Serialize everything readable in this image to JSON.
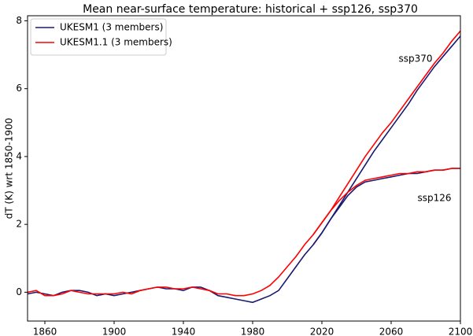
{
  "chart_data": {
    "type": "line",
    "title": "Mean near-surface temperature: historical + ssp126, ssp370",
    "y_label": "dT (K) wrt 1850-1900",
    "annotations": [
      "ssp370",
      "ssp126"
    ],
    "legend": "upper left",
    "x": [
      1850,
      1855,
      1860,
      1865,
      1870,
      1875,
      1880,
      1885,
      1890,
      1895,
      1900,
      1905,
      1910,
      1915,
      1920,
      1925,
      1930,
      1935,
      1940,
      1945,
      1950,
      1955,
      1960,
      1965,
      1970,
      1975,
      1980,
      1985,
      1990,
      1995,
      2000,
      2005,
      2010,
      2015,
      2020,
      2025,
      2030,
      2035,
      2040,
      2045,
      2050,
      2055,
      2060,
      2065,
      2070,
      2075,
      2080,
      2085,
      2090,
      2095,
      2100
    ],
    "series": [
      {
        "name": "UKESM1 (3 members)",
        "color": "#191970",
        "values": [
          -0.05,
          0.0,
          -0.05,
          -0.1,
          0.0,
          0.05,
          0.05,
          0.0,
          -0.1,
          -0.05,
          -0.1,
          -0.05,
          0.0,
          0.05,
          0.1,
          0.15,
          0.1,
          0.1,
          0.05,
          0.15,
          0.15,
          0.05,
          -0.1,
          -0.15,
          -0.2,
          -0.25,
          -0.3,
          -0.2,
          -0.1,
          0.05,
          0.4,
          0.75,
          1.1,
          1.4,
          1.75,
          2.15,
          2.55,
          2.95,
          3.35,
          3.75,
          4.15,
          4.5,
          4.85,
          5.2,
          5.55,
          5.95,
          6.3,
          6.65,
          6.95,
          7.25,
          7.55
        ]
      },
      {
        "name": "UKESM1 (3 members)",
        "color": "#191970",
        "values": [
          null,
          null,
          null,
          null,
          null,
          null,
          null,
          null,
          null,
          null,
          null,
          null,
          null,
          null,
          null,
          null,
          null,
          null,
          null,
          null,
          null,
          null,
          null,
          null,
          null,
          null,
          null,
          null,
          null,
          null,
          null,
          null,
          null,
          1.4,
          1.75,
          2.15,
          2.5,
          2.85,
          3.1,
          3.25,
          3.3,
          3.35,
          3.4,
          3.45,
          3.5,
          3.5,
          3.55,
          3.6,
          3.6,
          3.65,
          3.65
        ]
      },
      {
        "name": "UKESM1.1 (3 members)",
        "color": "#ff0000",
        "values": [
          0.0,
          0.05,
          -0.1,
          -0.1,
          -0.05,
          0.05,
          0.0,
          -0.05,
          -0.05,
          -0.05,
          -0.05,
          0.0,
          -0.05,
          0.05,
          0.1,
          0.15,
          0.15,
          0.1,
          0.1,
          0.15,
          0.1,
          0.05,
          -0.05,
          -0.05,
          -0.1,
          -0.1,
          -0.05,
          0.05,
          0.2,
          0.45,
          0.75,
          1.05,
          1.4,
          1.7,
          2.05,
          2.4,
          2.8,
          3.2,
          3.6,
          4.0,
          4.35,
          4.7,
          5.0,
          5.35,
          5.7,
          6.05,
          6.4,
          6.75,
          7.05,
          7.4,
          7.7
        ]
      },
      {
        "name": "UKESM1.1 (3 members)",
        "color": "#ff0000",
        "values": [
          null,
          null,
          null,
          null,
          null,
          null,
          null,
          null,
          null,
          null,
          null,
          null,
          null,
          null,
          null,
          null,
          null,
          null,
          null,
          null,
          null,
          null,
          null,
          null,
          null,
          null,
          null,
          null,
          null,
          null,
          null,
          null,
          null,
          1.7,
          2.05,
          2.4,
          2.7,
          2.95,
          3.15,
          3.3,
          3.35,
          3.4,
          3.45,
          3.5,
          3.5,
          3.55,
          3.55,
          3.6,
          3.6,
          3.65,
          3.65
        ]
      }
    ],
    "xlim": [
      1850,
      2100
    ],
    "xticks": [
      1860,
      1900,
      1940,
      1980,
      2020,
      2060,
      2100
    ],
    "ylim": [
      -0.85,
      8.15
    ],
    "yticks": [
      0,
      2,
      4,
      6,
      8
    ],
    "grid": false
  }
}
